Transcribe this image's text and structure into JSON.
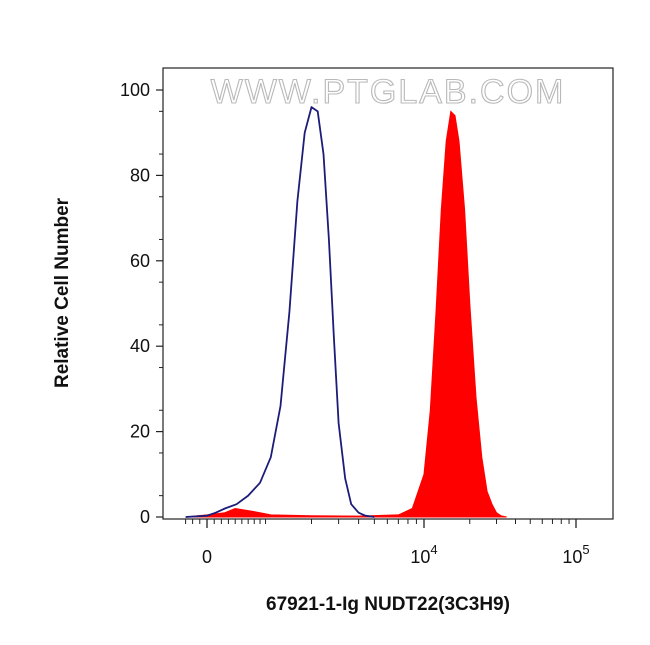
{
  "chart_data": {
    "type": "area",
    "title": "",
    "watermark": "WWW.PTGLAB.COM",
    "xlabel": "67921-1-Ig NUDT22(3C3H9)",
    "ylabel": "Relative Cell Number",
    "x_scale": "biexponential",
    "xlim": [
      -400,
      200000
    ],
    "ylim": [
      0,
      100
    ],
    "y_ticks": [
      "0",
      "20",
      "40",
      "60",
      "80",
      "100"
    ],
    "x_ticks": [
      {
        "label": "0",
        "value": 0
      },
      {
        "label": "10",
        "sup": "4",
        "value": 10000
      },
      {
        "label": "10",
        "sup": "5",
        "value": 100000
      }
    ],
    "grid": false,
    "series": [
      {
        "name": "",
        "style": "outline",
        "color": "#1c1c7a",
        "x": [
          -300,
          0,
          120,
          250,
          420,
          600,
          800,
          1000,
          1200,
          1400,
          1600,
          1800,
          2000,
          2200,
          2400,
          2600,
          2800,
          3000,
          3300,
          3600,
          4000,
          4400,
          5000
        ],
        "y": [
          0,
          0.3,
          1,
          2,
          3,
          5,
          8,
          14,
          26,
          48,
          74,
          90,
          96,
          95,
          85,
          65,
          42,
          22,
          9,
          3,
          1,
          0.3,
          0
        ]
      },
      {
        "name": "",
        "style": "filled",
        "color": "#ff0000",
        "x": [
          -300,
          0,
          250,
          400,
          600,
          800,
          1000,
          2000,
          4000,
          7000,
          8500,
          10000,
          11000,
          12000,
          13000,
          14000,
          15000,
          16000,
          17000,
          18500,
          20000,
          22000,
          24000,
          26000,
          28000,
          30000,
          32000,
          35000
        ],
        "y": [
          0,
          0.5,
          1,
          2,
          1.5,
          1,
          0.5,
          0.3,
          0.2,
          0.5,
          2,
          10,
          25,
          48,
          72,
          88,
          95,
          94,
          88,
          72,
          50,
          28,
          14,
          6,
          3,
          1,
          0.3,
          0
        ]
      }
    ]
  }
}
